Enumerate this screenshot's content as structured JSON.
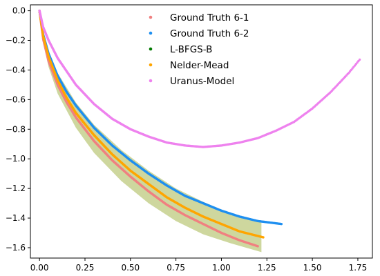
{
  "chart_data": {
    "type": "scatter",
    "xlim": [
      -0.05,
      1.83
    ],
    "ylim": [
      -1.67,
      0.04
    ],
    "x_ticks": [
      "0.00",
      "0.25",
      "0.50",
      "0.75",
      "1.00",
      "1.25",
      "1.50",
      "1.75"
    ],
    "y_ticks": [
      "0.0",
      "−0.2",
      "−0.4",
      "−0.6",
      "−0.8",
      "−1.0",
      "−1.2",
      "−1.4",
      "−1.6"
    ],
    "grid": false,
    "legend_position": "top-center",
    "band": {
      "color": "#c2cd86",
      "upper": [
        [
          0.0,
          0.0
        ],
        [
          0.02,
          -0.15
        ],
        [
          0.05,
          -0.28
        ],
        [
          0.1,
          -0.42
        ],
        [
          0.2,
          -0.62
        ],
        [
          0.3,
          -0.77
        ],
        [
          0.45,
          -0.94
        ],
        [
          0.6,
          -1.08
        ],
        [
          0.75,
          -1.2
        ],
        [
          0.9,
          -1.29
        ],
        [
          1.05,
          -1.37
        ],
        [
          1.22,
          -1.43
        ]
      ],
      "lower": [
        [
          0.0,
          0.0
        ],
        [
          0.02,
          -0.22
        ],
        [
          0.05,
          -0.38
        ],
        [
          0.1,
          -0.56
        ],
        [
          0.2,
          -0.79
        ],
        [
          0.3,
          -0.96
        ],
        [
          0.45,
          -1.15
        ],
        [
          0.6,
          -1.3
        ],
        [
          0.75,
          -1.42
        ],
        [
          0.9,
          -1.51
        ],
        [
          1.05,
          -1.57
        ],
        [
          1.22,
          -1.63
        ]
      ]
    },
    "series": [
      {
        "name": "Ground Truth 6-1",
        "color": "#f08080",
        "points": [
          [
            0.0,
            0.0
          ],
          [
            0.02,
            -0.19
          ],
          [
            0.05,
            -0.34
          ],
          [
            0.1,
            -0.5
          ],
          [
            0.15,
            -0.62
          ],
          [
            0.2,
            -0.72
          ],
          [
            0.3,
            -0.88
          ],
          [
            0.4,
            -1.01
          ],
          [
            0.5,
            -1.12
          ],
          [
            0.6,
            -1.22
          ],
          [
            0.7,
            -1.31
          ],
          [
            0.8,
            -1.38
          ],
          [
            0.9,
            -1.44
          ],
          [
            1.0,
            -1.5
          ],
          [
            1.1,
            -1.55
          ],
          [
            1.2,
            -1.59
          ]
        ]
      },
      {
        "name": "Ground Truth 6-2",
        "color": "#1e8ff0",
        "points": [
          [
            0.0,
            0.0
          ],
          [
            0.02,
            -0.16
          ],
          [
            0.05,
            -0.29
          ],
          [
            0.1,
            -0.44
          ],
          [
            0.15,
            -0.55
          ],
          [
            0.2,
            -0.64
          ],
          [
            0.3,
            -0.79
          ],
          [
            0.4,
            -0.91
          ],
          [
            0.5,
            -1.01
          ],
          [
            0.6,
            -1.1
          ],
          [
            0.7,
            -1.18
          ],
          [
            0.8,
            -1.25
          ],
          [
            0.9,
            -1.3
          ],
          [
            1.0,
            -1.35
          ],
          [
            1.1,
            -1.39
          ],
          [
            1.2,
            -1.42
          ],
          [
            1.33,
            -1.44
          ]
        ]
      },
      {
        "name": "L-BFGS-B",
        "color": "#007a00",
        "points": [
          [
            0.0,
            0.0
          ],
          [
            0.02,
            -0.17
          ],
          [
            0.05,
            -0.31
          ],
          [
            0.1,
            -0.47
          ],
          [
            0.15,
            -0.59
          ],
          [
            0.2,
            -0.69
          ],
          [
            0.3,
            -0.84
          ],
          [
            0.4,
            -0.97
          ],
          [
            0.5,
            -1.08
          ],
          [
            0.6,
            -1.17
          ],
          [
            0.7,
            -1.26
          ],
          [
            0.8,
            -1.33
          ],
          [
            0.9,
            -1.39
          ],
          [
            1.0,
            -1.44
          ],
          [
            1.1,
            -1.49
          ],
          [
            1.23,
            -1.53
          ]
        ]
      },
      {
        "name": "Nelder-Mead",
        "color": "#ffa500",
        "points": [
          [
            0.0,
            0.0
          ],
          [
            0.02,
            -0.17
          ],
          [
            0.05,
            -0.31
          ],
          [
            0.1,
            -0.47
          ],
          [
            0.15,
            -0.59
          ],
          [
            0.2,
            -0.69
          ],
          [
            0.3,
            -0.84
          ],
          [
            0.4,
            -0.97
          ],
          [
            0.5,
            -1.08
          ],
          [
            0.6,
            -1.17
          ],
          [
            0.7,
            -1.26
          ],
          [
            0.8,
            -1.33
          ],
          [
            0.9,
            -1.39
          ],
          [
            1.0,
            -1.44
          ],
          [
            1.1,
            -1.49
          ],
          [
            1.23,
            -1.53
          ]
        ]
      },
      {
        "name": "Uranus-Model",
        "color": "#ee82ee",
        "points": [
          [
            0.0,
            0.0
          ],
          [
            0.02,
            -0.11
          ],
          [
            0.05,
            -0.2
          ],
          [
            0.1,
            -0.32
          ],
          [
            0.2,
            -0.5
          ],
          [
            0.3,
            -0.63
          ],
          [
            0.4,
            -0.73
          ],
          [
            0.5,
            -0.8
          ],
          [
            0.6,
            -0.85
          ],
          [
            0.7,
            -0.89
          ],
          [
            0.8,
            -0.91
          ],
          [
            0.9,
            -0.92
          ],
          [
            1.0,
            -0.91
          ],
          [
            1.1,
            -0.89
          ],
          [
            1.2,
            -0.86
          ],
          [
            1.3,
            -0.81
          ],
          [
            1.4,
            -0.75
          ],
          [
            1.5,
            -0.66
          ],
          [
            1.6,
            -0.55
          ],
          [
            1.7,
            -0.42
          ],
          [
            1.76,
            -0.33
          ]
        ]
      }
    ]
  }
}
